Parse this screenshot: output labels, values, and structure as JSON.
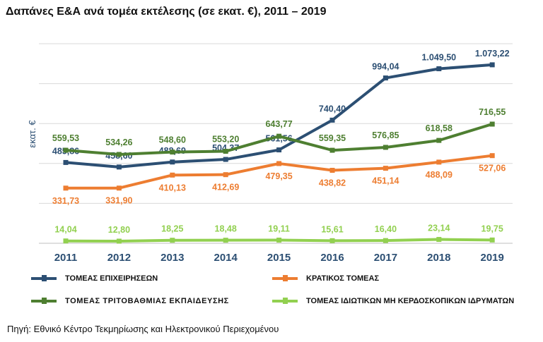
{
  "title": "Δαπάνες Ε&Α ανά τομέα εκτέλεσης (σε εκατ. €), 2011 – 2019",
  "source": "Πηγή: Εθνικό Κέντρο Τεκμηρίωσης και Ηλεκτρονικού Περιεχομένου",
  "chart_data": {
    "type": "line",
    "title": "Δαπάνες Ε&Α ανά τομέα εκτέλεσης (σε εκατ. €), 2011 – 2019",
    "ylabel": "εκατ. €",
    "xlabel": "",
    "ylim": [
      0,
      1200
    ],
    "grid": true,
    "legend_position": "bottom",
    "categories": [
      "2011",
      "2012",
      "2013",
      "2014",
      "2015",
      "2016",
      "2017",
      "2018",
      "2019"
    ],
    "series": [
      {
        "name": "ΤΟΜΕΑΣ ΕΠΙΧΕΙΡΗΣΕΩΝ",
        "color": "#2c4f73",
        "values": [
          485.86,
          458.6,
          488.69,
          504.37,
          561.56,
          740.4,
          994.04,
          1049.5,
          1073.22
        ],
        "labels": [
          "485,86",
          "458,60",
          "488,69",
          "504,37",
          "561,56",
          "740,40",
          "994,04",
          "1.049,50",
          "1.073,22"
        ]
      },
      {
        "name": "ΚΡΑΤΙΚΟΣ ΤΟΜΕΑΣ",
        "color": "#ed7d31",
        "values": [
          331.73,
          331.9,
          410.13,
          412.69,
          479.35,
          438.82,
          451.14,
          488.09,
          527.06
        ],
        "labels": [
          "331,73",
          "331,90",
          "410,13",
          "412,69",
          "479,35",
          "438,82",
          "451,14",
          "488,09",
          "527,06"
        ]
      },
      {
        "name": "ΤΟΜΕΑΣ ΤΡΙΤΟΒΑΘΜΙΑΣ ΕΚΠΑΙΔΕΥΣΗΣ",
        "color": "#4e7f31",
        "values": [
          559.53,
          534.26,
          548.6,
          553.2,
          643.77,
          559.35,
          576.85,
          618.58,
          716.55
        ],
        "labels": [
          "559,53",
          "534,26",
          "548,60",
          "553,20",
          "643,77",
          "559,35",
          "576,85",
          "618,58",
          "716,55"
        ]
      },
      {
        "name": "ΤΟΜΕΑΣ ΙΔΙΩΤΙΚΩΝ ΜΗ ΚΕΡΔΟΣΚΟΠΙΚΩΝ ΙΔΡΥΜΑΤΩΝ",
        "color": "#92d050",
        "values": [
          14.04,
          12.8,
          18.25,
          18.48,
          19.11,
          15.61,
          16.4,
          23.14,
          19.75
        ],
        "labels": [
          "14,04",
          "12,80",
          "18,25",
          "18,48",
          "19,11",
          "15,61",
          "16,40",
          "23,14",
          "19,75"
        ]
      }
    ]
  }
}
